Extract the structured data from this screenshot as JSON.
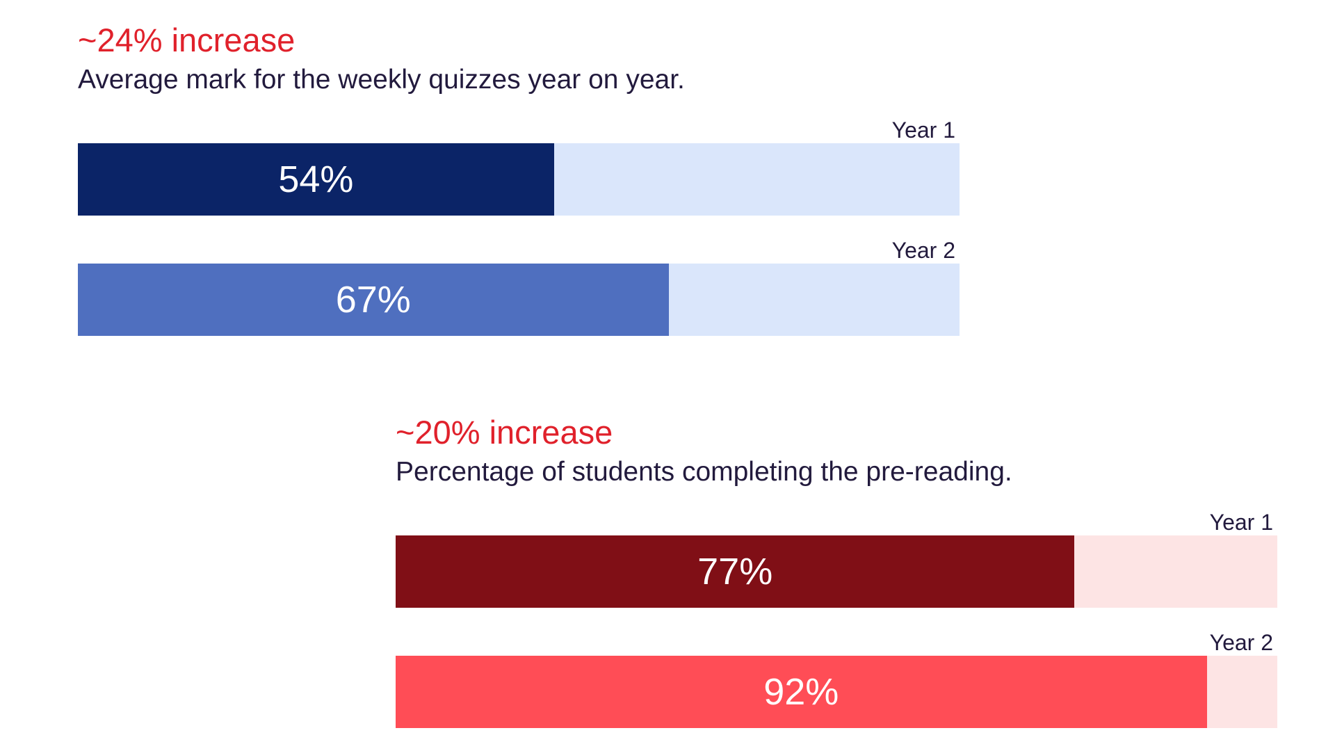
{
  "chart_data": [
    {
      "type": "bar",
      "orientation": "horizontal",
      "title": "~24% increase",
      "subtitle": "Average mark for the weekly quizzes year on year.",
      "categories": [
        "Year 1",
        "Year 2"
      ],
      "values": [
        54,
        67
      ],
      "value_labels": [
        "54%",
        "67%"
      ],
      "xlim": [
        0,
        100
      ],
      "grid": false,
      "colors": {
        "title": "#e0212b",
        "text": "#221a3d",
        "track": "#dae6fb",
        "bars": [
          "#0b2467",
          "#4f6fbf"
        ]
      }
    },
    {
      "type": "bar",
      "orientation": "horizontal",
      "title": "~20% increase",
      "subtitle": "Percentage of students completing the pre-reading.",
      "categories": [
        "Year 1",
        "Year 2"
      ],
      "values": [
        77,
        92
      ],
      "value_labels": [
        "77%",
        "92%"
      ],
      "xlim": [
        0,
        100
      ],
      "grid": false,
      "colors": {
        "title": "#e0212b",
        "text": "#221a3d",
        "track": "#fde4e4",
        "bars": [
          "#800f16",
          "#ff4d56"
        ]
      }
    }
  ]
}
